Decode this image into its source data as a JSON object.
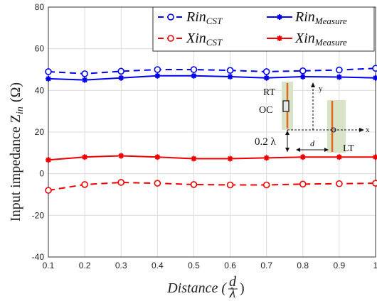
{
  "chart_data": {
    "type": "line",
    "x": [
      0.1,
      0.2,
      0.3,
      0.4,
      0.5,
      0.6,
      0.7,
      0.8,
      0.9,
      1.0
    ],
    "xlim": [
      0.1,
      1.0
    ],
    "ylim": [
      -40,
      80
    ],
    "x_ticks": [
      "0.1",
      "0.2",
      "0.3",
      "0.4",
      "0.5",
      "0.6",
      "0.7",
      "0.8",
      "0.9",
      "1"
    ],
    "y_ticks": [
      "-40",
      "-20",
      "0",
      "20",
      "40",
      "60",
      "80"
    ],
    "y_tick_values": [
      -40,
      -20,
      0,
      20,
      40,
      60,
      80
    ],
    "xlabel_main": "Distance (",
    "xlabel_frac_num": "d",
    "xlabel_frac_den": "λ",
    "xlabel_close": ")",
    "ylabel_main": "Input impedance Z",
    "ylabel_sub": "in",
    "ylabel_unit": "(Ω)",
    "grid": true,
    "legend_position": "top-right",
    "series": [
      {
        "name": "Rin",
        "name_sub": "CST",
        "color": "#0000ee",
        "dash": true,
        "marker": "circle",
        "values": [
          49,
          48,
          49.2,
          50,
          50,
          49.6,
          49,
          49.4,
          49.8,
          50.6
        ]
      },
      {
        "name": "Rin",
        "name_sub": "Measure",
        "color": "#0000ee",
        "dash": false,
        "marker": "star",
        "values": [
          45.6,
          45,
          46,
          47,
          47,
          46.6,
          46,
          46.6,
          46.4,
          46
        ]
      },
      {
        "name": "Xin",
        "name_sub": "CST",
        "color": "#ee0000",
        "dash": true,
        "marker": "circle",
        "values": [
          -8,
          -5.2,
          -4.2,
          -4.6,
          -5.2,
          -5.4,
          -5.4,
          -5,
          -4.8,
          -4.6
        ]
      },
      {
        "name": "Xin",
        "name_sub": "Measure",
        "color": "#ee0000",
        "dash": false,
        "marker": "star",
        "values": [
          6.6,
          8,
          8.6,
          8,
          7.2,
          7.2,
          7.6,
          8,
          8,
          8
        ]
      }
    ],
    "inset": {
      "label_rt": "RT",
      "label_oc": "OC",
      "label_lt": "LT",
      "label_height": "0.2 λ",
      "label_d": "d",
      "label_x": "x",
      "label_y": "y"
    }
  }
}
